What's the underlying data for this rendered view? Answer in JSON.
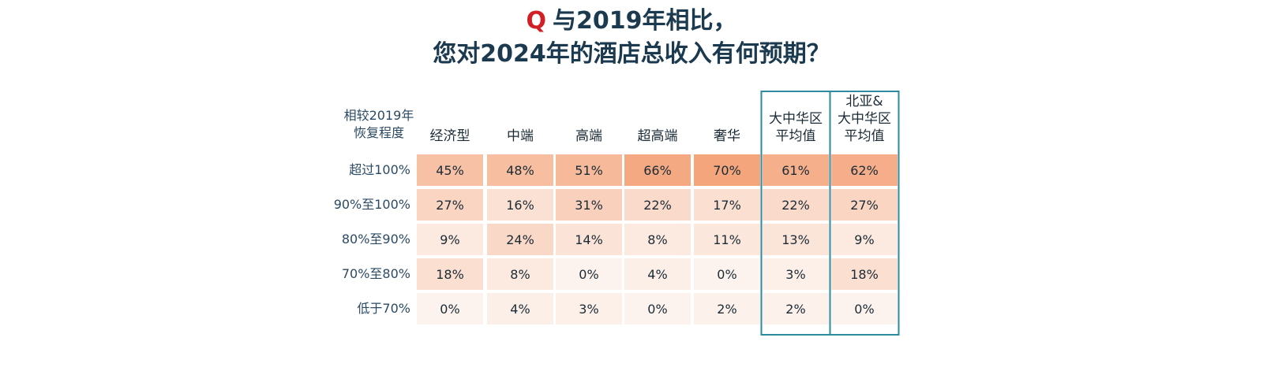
{
  "title": {
    "q_mark": "Q",
    "line1": "与2019年相比，",
    "line2": "您对2024年的酒店总收入有何预期？"
  },
  "chart_data": {
    "type": "heatmap",
    "corner_label": [
      "相较2019年",
      "恢复程度"
    ],
    "columns": [
      [
        "经济型"
      ],
      [
        "中端"
      ],
      [
        "高端"
      ],
      [
        "超高端"
      ],
      [
        "奢华"
      ],
      [
        "大中华区",
        "平均值"
      ],
      [
        "北亚&",
        "大中华区",
        "平均值"
      ]
    ],
    "highlighted_columns": [
      5,
      6
    ],
    "rows": [
      "超过100%",
      "90%至100%",
      "80%至90%",
      "70%至80%",
      "低于70%"
    ],
    "values": [
      [
        45,
        48,
        51,
        66,
        70,
        61,
        62
      ],
      [
        27,
        16,
        31,
        22,
        17,
        22,
        27
      ],
      [
        9,
        24,
        14,
        8,
        11,
        13,
        9
      ],
      [
        18,
        8,
        0,
        4,
        0,
        3,
        18
      ],
      [
        0,
        4,
        3,
        0,
        2,
        2,
        0
      ]
    ],
    "unit": "%",
    "colors": {
      "cell_high": "#f4a57c",
      "cell_low": "#fdf3ee",
      "highlight_border": "#2e8a9e"
    }
  }
}
